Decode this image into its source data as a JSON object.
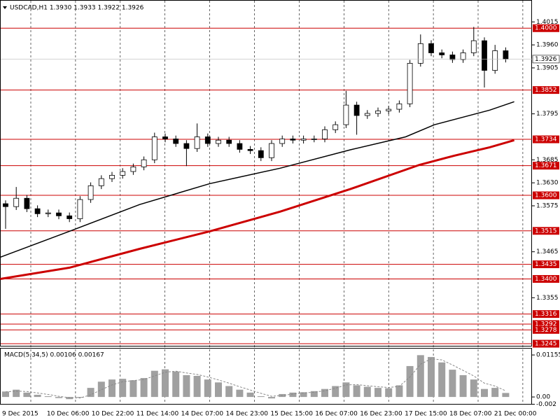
{
  "chart_data": {
    "type": "candlestick",
    "title": "USDCAD,H1  1.3930 1.3933 1.3922 1.3926",
    "categories": [
      "9 Dec 2015",
      "10 Dec 06:00",
      "10 Dec 22:00",
      "11 Dec 14:00",
      "14 Dec 07:00",
      "14 Dec 23:00",
      "15 Dec 15:00",
      "16 Dec 07:00",
      "16 Dec 23:00",
      "17 Dec 15:00",
      "18 Dec 07:00",
      "21 Dec 00:00"
    ],
    "ylim": [
      1.324,
      1.4054
    ],
    "yticks": [
      1.4015,
      {
        "value": 1.396,
        "label": "1.3960"
      },
      1.3905,
      1.3795,
      1.3685,
      {
        "value": 1.363,
        "label": "1.3630"
      },
      1.3575,
      1.3465,
      1.3355
    ],
    "up_color": "#ffffff",
    "down_color": "#000000",
    "candles": {
      "open": [
        1.358,
        1.3573,
        1.3593,
        1.3568,
        1.3556,
        1.3558,
        1.3551,
        1.3544,
        1.359,
        1.3623,
        1.364,
        1.3648,
        1.3657,
        1.3668,
        1.3685,
        1.374,
        1.3735,
        1.3724,
        1.3712,
        1.374,
        1.3724,
        1.3732,
        1.3724,
        1.371,
        1.3707,
        1.369,
        1.3724,
        1.3735,
        1.3732,
        1.3735,
        1.3735,
        1.3757,
        1.3769,
        1.3816,
        1.3791,
        1.3796,
        1.3802,
        1.3806,
        1.3819,
        1.3916,
        1.3963,
        1.3941,
        1.3936,
        1.3925,
        1.3941,
        1.397,
        1.3899,
        1.3946
      ],
      "high": [
        1.3588,
        1.362,
        1.3601,
        1.3576,
        1.3566,
        1.3566,
        1.3559,
        1.3598,
        1.3631,
        1.3648,
        1.3656,
        1.3665,
        1.3676,
        1.3693,
        1.375,
        1.3748,
        1.3743,
        1.3732,
        1.3772,
        1.3748,
        1.374,
        1.374,
        1.3732,
        1.3718,
        1.3715,
        1.3732,
        1.3743,
        1.3743,
        1.3743,
        1.3743,
        1.3765,
        1.3777,
        1.385,
        1.3824,
        1.3804,
        1.381,
        1.3814,
        1.3827,
        1.3924,
        1.3985,
        1.3971,
        1.3949,
        1.3944,
        1.3949,
        1.4003,
        1.3978,
        1.396,
        1.3954
      ],
      "low": [
        1.352,
        1.3565,
        1.356,
        1.3548,
        1.3548,
        1.3543,
        1.3536,
        1.3536,
        1.3582,
        1.3615,
        1.3632,
        1.364,
        1.3649,
        1.366,
        1.3677,
        1.3727,
        1.3716,
        1.367,
        1.3704,
        1.3716,
        1.3716,
        1.3716,
        1.3702,
        1.3699,
        1.3682,
        1.3682,
        1.3716,
        1.3724,
        1.3724,
        1.3727,
        1.3727,
        1.3749,
        1.3761,
        1.3745,
        1.3783,
        1.3788,
        1.3794,
        1.3798,
        1.3811,
        1.3908,
        1.3933,
        1.3928,
        1.3917,
        1.3917,
        1.3933,
        1.3858,
        1.3891,
        1.3918
      ],
      "close": [
        1.3573,
        1.3593,
        1.3568,
        1.3556,
        1.3558,
        1.3551,
        1.3544,
        1.359,
        1.3623,
        1.364,
        1.3648,
        1.3657,
        1.3668,
        1.3685,
        1.374,
        1.3735,
        1.3724,
        1.3712,
        1.374,
        1.3724,
        1.3732,
        1.3724,
        1.371,
        1.3707,
        1.369,
        1.3724,
        1.3735,
        1.3732,
        1.3735,
        1.3735,
        1.3757,
        1.3769,
        1.3816,
        1.3791,
        1.3796,
        1.3802,
        1.3806,
        1.3819,
        1.3916,
        1.3963,
        1.3941,
        1.3936,
        1.3925,
        1.3941,
        1.397,
        1.3899,
        1.3946,
        1.3926
      ]
    },
    "series": [
      {
        "color": "#000000",
        "x": [
          -0.5,
          6,
          12.6,
          19.2,
          25.8,
          32.4,
          37.6,
          40.3,
          45.5,
          47.8
        ],
        "values": [
          1.3452,
          1.3514,
          1.3578,
          1.3628,
          1.3665,
          1.3709,
          1.374,
          1.3769,
          1.3804,
          1.3824
        ]
      },
      {
        "color": "#cc0000",
        "x": [
          -0.5,
          6,
          12.6,
          19.2,
          25.8,
          32.4,
          38.9,
          42.2,
          45.5,
          47.8
        ],
        "values": [
          1.34,
          1.3427,
          1.3472,
          1.3514,
          1.3561,
          1.3615,
          1.3673,
          1.3695,
          1.3715,
          1.3732
        ]
      }
    ],
    "levels": [
      {
        "value": 1.4,
        "label": "1.4000"
      },
      1.3852,
      1.3734,
      1.3671,
      {
        "value": 1.36,
        "label": "1.3600"
      },
      1.3515,
      1.3435,
      {
        "value": 1.34,
        "label": "1.3400"
      },
      1.3316,
      1.3292,
      1.3278,
      1.3245
    ],
    "level_color": "#cc0000",
    "current_price": 1.3926,
    "macd": {
      "title": "MACD(5,34,5) 0.00106 0.00167",
      "ylim": [
        -0.0021,
        0.0133
      ],
      "yticks": [
        0.01155,
        {
          "value": 0,
          "label": "0.00"
        },
        -0.002
      ],
      "color": "#a0a0a0",
      "signal_color": "#888888",
      "values": [
        0.0015,
        0.002,
        0.0012,
        0.0006,
        0.0002,
        -0.0003,
        -0.0006,
        -0.0002,
        0.0025,
        0.0042,
        0.0048,
        0.005,
        0.0046,
        0.0052,
        0.0072,
        0.0076,
        0.007,
        0.006,
        0.0058,
        0.0048,
        0.004,
        0.003,
        0.002,
        0.0012,
        0.0002,
        -0.0004,
        0.0008,
        0.0012,
        0.0013,
        0.0016,
        0.0022,
        0.003,
        0.004,
        0.0032,
        0.0028,
        0.0025,
        0.0024,
        0.0032,
        0.0085,
        0.0115,
        0.011,
        0.0095,
        0.0075,
        0.006,
        0.0048,
        0.0022,
        0.0025,
        0.0011
      ],
      "signal": [
        0.0014,
        0.0016,
        0.0015,
        0.0011,
        0.0007,
        0.0002,
        -0.0002,
        -0.0003,
        0.0006,
        0.002,
        0.0033,
        0.0042,
        0.0045,
        0.0048,
        0.0058,
        0.0068,
        0.0071,
        0.0066,
        0.0062,
        0.0055,
        0.0047,
        0.0038,
        0.0028,
        0.0019,
        0.001,
        0.0002,
        0.0004,
        0.0008,
        0.0011,
        0.0013,
        0.0017,
        0.0024,
        0.0033,
        0.0034,
        0.0031,
        0.0028,
        0.0026,
        0.0029,
        0.0055,
        0.009,
        0.0105,
        0.0102,
        0.0088,
        0.0073,
        0.0058,
        0.0038,
        0.003,
        0.0017
      ]
    }
  }
}
